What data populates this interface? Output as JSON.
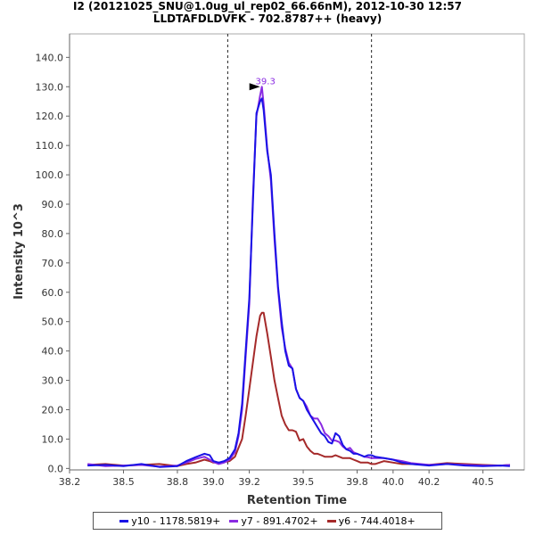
{
  "title": {
    "line1": "I2 (20121025_SNU@1.0ug_ul_rep02_66.66nM), 2012-10-30 12:57",
    "line2": "LLDTAFDLDVFK - 702.8787++ (heavy)"
  },
  "chart_data": {
    "type": "line",
    "xlabel": "Retention Time",
    "ylabel": "Intensity 10^3",
    "xlim": [
      38.2,
      40.73
    ],
    "ylim": [
      -0.5,
      148
    ],
    "xticks": [
      "38.2",
      "38.5",
      "38.8",
      "39.0",
      "39.2",
      "39.5",
      "39.8",
      "40.0",
      "40.2",
      "40.5"
    ],
    "yticks": [
      "0.0",
      "10.0",
      "20.0",
      "30.0",
      "40.0",
      "50.0",
      "60.0",
      "70.0",
      "80.0",
      "90.0",
      "100.0",
      "110.0",
      "120.0",
      "130.0",
      "140.0"
    ],
    "vlines": [
      39.08,
      39.88
    ],
    "peak_label": "39.3",
    "peak_x": 39.27,
    "peak_y": 130.0,
    "series": [
      {
        "name": "y10 - 1178.5819+",
        "color": "#1a12e6",
        "x": [
          38.3,
          38.4,
          38.5,
          38.6,
          38.7,
          38.8,
          38.85,
          38.9,
          38.95,
          38.98,
          39.0,
          39.03,
          39.06,
          39.09,
          39.12,
          39.14,
          39.16,
          39.18,
          39.2,
          39.22,
          39.24,
          39.26,
          39.27,
          39.28,
          39.3,
          39.32,
          39.34,
          39.36,
          39.38,
          39.4,
          39.42,
          39.44,
          39.46,
          39.48,
          39.5,
          39.52,
          39.54,
          39.56,
          39.58,
          39.6,
          39.62,
          39.64,
          39.66,
          39.68,
          39.7,
          39.72,
          39.74,
          39.76,
          39.78,
          39.8,
          39.82,
          39.84,
          39.86,
          39.88,
          39.9,
          39.95,
          40.0,
          40.05,
          40.1,
          40.2,
          40.3,
          40.4,
          40.5,
          40.6,
          40.65
        ],
        "values": [
          1.0,
          1.2,
          0.8,
          1.5,
          0.5,
          0.8,
          2.5,
          3.8,
          5.0,
          4.5,
          2.5,
          2.0,
          2.5,
          3.5,
          6.5,
          12.0,
          22.0,
          40.0,
          58.0,
          90.0,
          121.0,
          125.0,
          126.0,
          122.0,
          108.0,
          100.0,
          80.0,
          62.0,
          50.0,
          40.0,
          35.0,
          34.0,
          27.0,
          24.0,
          23.0,
          20.0,
          18.0,
          16.0,
          14.0,
          12.0,
          11.0,
          9.0,
          8.5,
          12.0,
          11.0,
          8.0,
          6.5,
          6.0,
          5.0,
          5.0,
          4.5,
          4.0,
          4.5,
          4.5,
          4.0,
          3.5,
          3.0,
          2.0,
          1.5,
          1.0,
          1.5,
          1.0,
          0.8,
          1.0,
          0.8
        ]
      },
      {
        "name": "y7 - 891.4702+",
        "color": "#8a2be2",
        "x": [
          38.3,
          38.4,
          38.5,
          38.6,
          38.7,
          38.8,
          38.85,
          38.9,
          38.95,
          38.98,
          39.0,
          39.03,
          39.06,
          39.09,
          39.12,
          39.14,
          39.16,
          39.18,
          39.2,
          39.22,
          39.24,
          39.26,
          39.27,
          39.28,
          39.3,
          39.32,
          39.34,
          39.36,
          39.38,
          39.4,
          39.42,
          39.44,
          39.46,
          39.48,
          39.5,
          39.52,
          39.54,
          39.56,
          39.58,
          39.6,
          39.62,
          39.64,
          39.66,
          39.68,
          39.7,
          39.72,
          39.74,
          39.76,
          39.78,
          39.8,
          39.82,
          39.84,
          39.86,
          39.88,
          39.9,
          39.95,
          40.0,
          40.05,
          40.1,
          40.2,
          40.3,
          40.4,
          40.5,
          40.6,
          40.65
        ],
        "values": [
          1.5,
          0.8,
          1.0,
          1.2,
          0.6,
          1.0,
          2.0,
          3.2,
          4.0,
          3.0,
          2.2,
          1.5,
          2.0,
          3.0,
          5.5,
          11.0,
          20.0,
          38.0,
          56.0,
          92.0,
          120.0,
          127.0,
          130.0,
          124.0,
          109.0,
          98.0,
          78.0,
          61.0,
          48.0,
          41.0,
          36.0,
          34.0,
          27.0,
          24.0,
          23.0,
          21.0,
          18.0,
          17.0,
          17.0,
          15.0,
          12.0,
          11.0,
          9.5,
          9.5,
          9.0,
          7.5,
          6.5,
          7.0,
          5.5,
          5.0,
          4.5,
          4.0,
          3.8,
          3.5,
          3.5,
          3.5,
          3.0,
          2.5,
          1.8,
          1.2,
          1.5,
          1.2,
          1.0,
          1.0,
          1.2
        ]
      },
      {
        "name": "y6 - 744.4018+",
        "color": "#a52a2a",
        "x": [
          38.3,
          38.4,
          38.5,
          38.6,
          38.7,
          38.8,
          38.85,
          38.9,
          38.95,
          38.98,
          39.0,
          39.03,
          39.06,
          39.09,
          39.12,
          39.14,
          39.16,
          39.18,
          39.2,
          39.22,
          39.24,
          39.26,
          39.27,
          39.28,
          39.3,
          39.32,
          39.34,
          39.36,
          39.38,
          39.4,
          39.42,
          39.44,
          39.46,
          39.48,
          39.5,
          39.52,
          39.54,
          39.56,
          39.58,
          39.6,
          39.62,
          39.64,
          39.66,
          39.68,
          39.7,
          39.72,
          39.74,
          39.76,
          39.78,
          39.8,
          39.82,
          39.84,
          39.86,
          39.88,
          39.9,
          39.95,
          40.0,
          40.05,
          40.1,
          40.2,
          40.3,
          40.4,
          40.5,
          40.6,
          40.65
        ],
        "values": [
          1.2,
          1.5,
          1.0,
          1.2,
          1.5,
          0.8,
          1.5,
          2.0,
          3.0,
          2.5,
          2.0,
          2.0,
          2.2,
          2.5,
          4.0,
          7.0,
          10.0,
          18.0,
          27.0,
          36.0,
          45.0,
          52.0,
          53.0,
          53.0,
          46.0,
          38.0,
          30.0,
          24.0,
          18.0,
          15.0,
          13.0,
          13.0,
          12.5,
          9.5,
          10.0,
          7.5,
          6.0,
          5.0,
          5.0,
          4.5,
          4.0,
          4.0,
          4.0,
          4.5,
          4.0,
          3.5,
          3.5,
          3.5,
          3.0,
          2.5,
          2.0,
          2.0,
          2.0,
          1.5,
          1.5,
          2.5,
          2.0,
          1.5,
          1.5,
          1.2,
          1.8,
          1.5,
          1.2,
          1.0,
          1.2
        ]
      }
    ]
  }
}
